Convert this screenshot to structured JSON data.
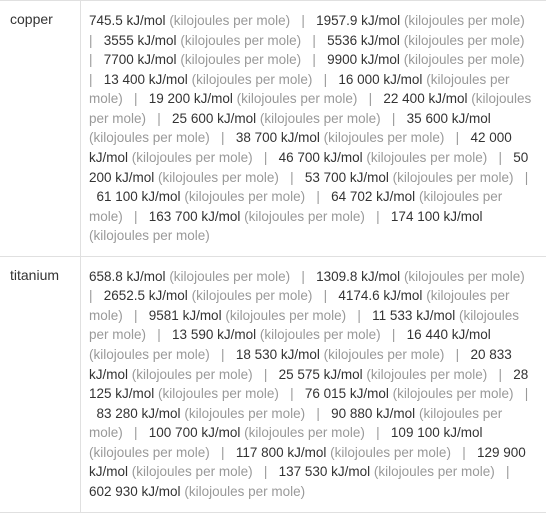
{
  "rows": [
    {
      "label": "copper",
      "values": [
        {
          "num": "745.5 kJ/mol",
          "unit": "(kilojoules per mole)"
        },
        {
          "num": "1957.9 kJ/mol",
          "unit": "(kilojoules per mole)"
        },
        {
          "num": "3555 kJ/mol",
          "unit": "(kilojoules per mole)"
        },
        {
          "num": "5536 kJ/mol",
          "unit": "(kilojoules per mole)"
        },
        {
          "num": "7700 kJ/mol",
          "unit": "(kilojoules per mole)"
        },
        {
          "num": "9900 kJ/mol",
          "unit": "(kilojoules per mole)"
        },
        {
          "num": "13 400 kJ/mol",
          "unit": "(kilojoules per mole)"
        },
        {
          "num": "16 000 kJ/mol",
          "unit": "(kilojoules per mole)"
        },
        {
          "num": "19 200 kJ/mol",
          "unit": "(kilojoules per mole)"
        },
        {
          "num": "22 400 kJ/mol",
          "unit": "(kilojoules per mole)"
        },
        {
          "num": "25 600 kJ/mol",
          "unit": "(kilojoules per mole)"
        },
        {
          "num": "35 600 kJ/mol",
          "unit": "(kilojoules per mole)"
        },
        {
          "num": "38 700 kJ/mol",
          "unit": "(kilojoules per mole)"
        },
        {
          "num": "42 000 kJ/mol",
          "unit": "(kilojoules per mole)"
        },
        {
          "num": "46 700 kJ/mol",
          "unit": "(kilojoules per mole)"
        },
        {
          "num": "50 200 kJ/mol",
          "unit": "(kilojoules per mole)"
        },
        {
          "num": "53 700 kJ/mol",
          "unit": "(kilojoules per mole)"
        },
        {
          "num": "61 100 kJ/mol",
          "unit": "(kilojoules per mole)"
        },
        {
          "num": "64 702 kJ/mol",
          "unit": "(kilojoules per mole)"
        },
        {
          "num": "163 700 kJ/mol",
          "unit": "(kilojoules per mole)"
        },
        {
          "num": "174 100 kJ/mol",
          "unit": "(kilojoules per mole)"
        }
      ]
    },
    {
      "label": "titanium",
      "values": [
        {
          "num": "658.8 kJ/mol",
          "unit": "(kilojoules per mole)"
        },
        {
          "num": "1309.8 kJ/mol",
          "unit": "(kilojoules per mole)"
        },
        {
          "num": "2652.5 kJ/mol",
          "unit": "(kilojoules per mole)"
        },
        {
          "num": "4174.6 kJ/mol",
          "unit": "(kilojoules per mole)"
        },
        {
          "num": "9581 kJ/mol",
          "unit": "(kilojoules per mole)"
        },
        {
          "num": "11 533 kJ/mol",
          "unit": "(kilojoules per mole)"
        },
        {
          "num": "13 590 kJ/mol",
          "unit": "(kilojoules per mole)"
        },
        {
          "num": "16 440 kJ/mol",
          "unit": "(kilojoules per mole)"
        },
        {
          "num": "18 530 kJ/mol",
          "unit": "(kilojoules per mole)"
        },
        {
          "num": "20 833 kJ/mol",
          "unit": "(kilojoules per mole)"
        },
        {
          "num": "25 575 kJ/mol",
          "unit": "(kilojoules per mole)"
        },
        {
          "num": "28 125 kJ/mol",
          "unit": "(kilojoules per mole)"
        },
        {
          "num": "76 015 kJ/mol",
          "unit": "(kilojoules per mole)"
        },
        {
          "num": "83 280 kJ/mol",
          "unit": "(kilojoules per mole)"
        },
        {
          "num": "90 880 kJ/mol",
          "unit": "(kilojoules per mole)"
        },
        {
          "num": "100 700 kJ/mol",
          "unit": "(kilojoules per mole)"
        },
        {
          "num": "109 100 kJ/mol",
          "unit": "(kilojoules per mole)"
        },
        {
          "num": "117 800 kJ/mol",
          "unit": "(kilojoules per mole)"
        },
        {
          "num": "129 900 kJ/mol",
          "unit": "(kilojoules per mole)"
        },
        {
          "num": "137 530 kJ/mol",
          "unit": "(kilojoules per mole)"
        },
        {
          "num": "602 930 kJ/mol",
          "unit": "(kilojoules per mole)"
        }
      ]
    }
  ],
  "separator": "|",
  "colors": {
    "text": "#333333",
    "unit": "#999999",
    "border": "#e0e0e0",
    "background": "#ffffff"
  },
  "fonts": {
    "label_size": 14,
    "value_size": 13.5
  }
}
